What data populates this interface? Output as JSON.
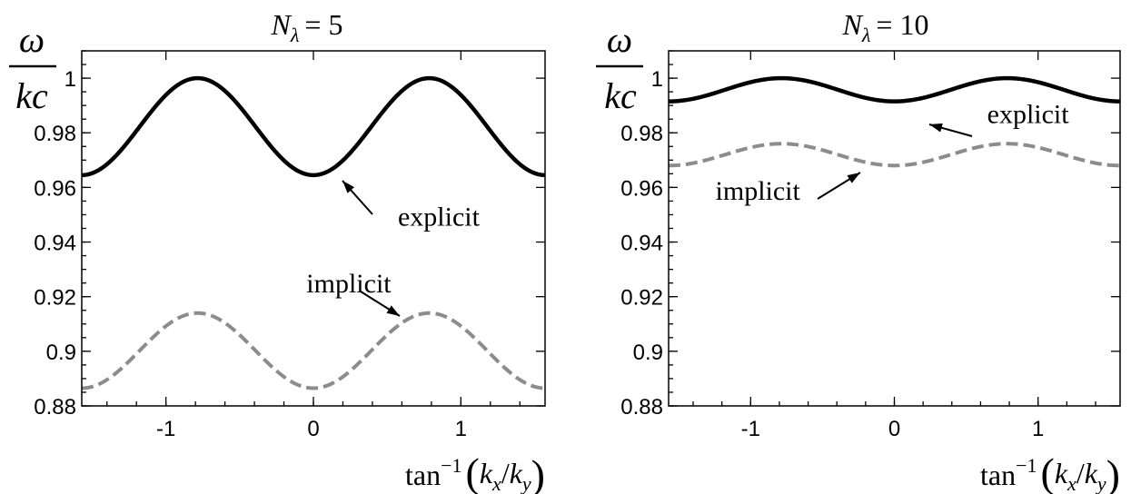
{
  "chart_data": [
    {
      "type": "line",
      "title": "N_λ = 5",
      "title_parts": {
        "var": "N",
        "sub": "λ",
        "eq": "= 5"
      },
      "ylabel": {
        "top": "ω",
        "bottom": "kc"
      },
      "xlabel": {
        "func": "tan",
        "sup": "−1",
        "open": "(",
        "num": "k",
        "num_sub": "x",
        "slash": "/",
        "den": "k",
        "den_sub": "y",
        "close": ")"
      },
      "xlim": [
        -1.5708,
        1.5708
      ],
      "ylim": [
        0.88,
        1.01
      ],
      "xticks": [
        -1,
        0,
        1
      ],
      "yticks": [
        0.88,
        0.9,
        0.92,
        0.94,
        0.96,
        0.98,
        1
      ],
      "ytick_labels": [
        "0.88",
        "0.9",
        "0.92",
        "0.94",
        "0.96",
        "0.98",
        "1"
      ],
      "xtick_labels": [
        "-1",
        "0",
        "1"
      ],
      "grid": false,
      "series": [
        {
          "name": "explicit",
          "style": "solid",
          "color": "#000000",
          "min": 0.9645,
          "max": 1.0,
          "phase": 0
        },
        {
          "name": "implicit",
          "style": "dashed",
          "color": "#8c8c8c",
          "min": 0.8865,
          "max": 0.914,
          "phase": 0
        }
      ],
      "annotations": [
        {
          "text": "explicit",
          "x": 0.85,
          "y": 0.946,
          "arrow_to": [
            0.1,
            0.9635
          ]
        },
        {
          "text": "implicit",
          "x": 0.24,
          "y": 0.9215,
          "arrow_to": [
            0.6,
            0.9155
          ]
        }
      ]
    },
    {
      "type": "line",
      "title": "N_λ = 10",
      "title_parts": {
        "var": "N",
        "sub": "λ",
        "eq": "= 10"
      },
      "ylabel": {
        "top": "ω",
        "bottom": "kc"
      },
      "xlabel": {
        "func": "tan",
        "sup": "−1",
        "open": "(",
        "num": "k",
        "num_sub": "x",
        "slash": "/",
        "den": "k",
        "den_sub": "y",
        "close": ")"
      },
      "xlim": [
        -1.5708,
        1.5708
      ],
      "ylim": [
        0.88,
        1.01
      ],
      "xticks": [
        -1,
        0,
        1
      ],
      "yticks": [
        0.88,
        0.9,
        0.92,
        0.94,
        0.96,
        0.98,
        1
      ],
      "ytick_labels": [
        "0.88",
        "0.9",
        "0.92",
        "0.94",
        "0.96",
        "0.98",
        "1"
      ],
      "xtick_labels": [
        "-1",
        "0",
        "1"
      ],
      "grid": false,
      "series": [
        {
          "name": "explicit",
          "style": "solid",
          "color": "#000000",
          "min": 0.9915,
          "max": 1.0,
          "phase": 0
        },
        {
          "name": "implicit",
          "style": "dashed",
          "color": "#8c8c8c",
          "min": 0.968,
          "max": 0.976,
          "phase": 0
        }
      ],
      "annotations": [
        {
          "text": "explicit",
          "x": 0.93,
          "y": 0.9835,
          "arrow_to": [
            0.3,
            0.9915
          ]
        },
        {
          "text": "implicit",
          "x": -0.95,
          "y": 0.9555,
          "arrow_to": [
            -0.38,
            0.9685
          ]
        }
      ]
    }
  ]
}
